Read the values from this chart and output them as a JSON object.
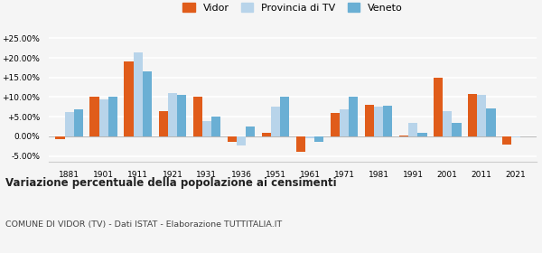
{
  "years": [
    1881,
    1901,
    1911,
    1921,
    1931,
    1936,
    1951,
    1961,
    1971,
    1981,
    1991,
    2001,
    2011,
    2021
  ],
  "vidor": [
    -0.8,
    10.2,
    19.0,
    6.5,
    10.0,
    -1.5,
    1.0,
    -4.0,
    6.0,
    8.0,
    0.3,
    15.0,
    10.8,
    -2.0
  ],
  "provincia": [
    6.2,
    9.5,
    21.5,
    11.0,
    3.8,
    -2.2,
    7.5,
    -0.5,
    7.0,
    7.5,
    3.5,
    6.5,
    10.5,
    -0.2
  ],
  "veneto": [
    6.8,
    10.0,
    16.5,
    10.5,
    5.0,
    2.5,
    10.0,
    -1.5,
    10.0,
    7.8,
    1.0,
    3.5,
    7.2,
    0.1
  ],
  "color_vidor": "#e05c1a",
  "color_provincia": "#b8d4ea",
  "color_veneto": "#6aafd4",
  "bg_color": "#f5f5f5",
  "ylim": [
    -6.5,
    27
  ],
  "yticks": [
    -5,
    0,
    5,
    10,
    15,
    20,
    25
  ],
  "ytick_labels": [
    "-5.00%",
    "0.00%",
    "+5.00%",
    "+10.00%",
    "+15.00%",
    "+20.00%",
    "+25.00%"
  ],
  "title": "Variazione percentuale della popolazione ai censimenti",
  "subtitle": "COMUNE DI VIDOR (TV) - Dati ISTAT - Elaborazione TUTTITALIA.IT",
  "legend_labels": [
    "Vidor",
    "Provincia di TV",
    "Veneto"
  ]
}
